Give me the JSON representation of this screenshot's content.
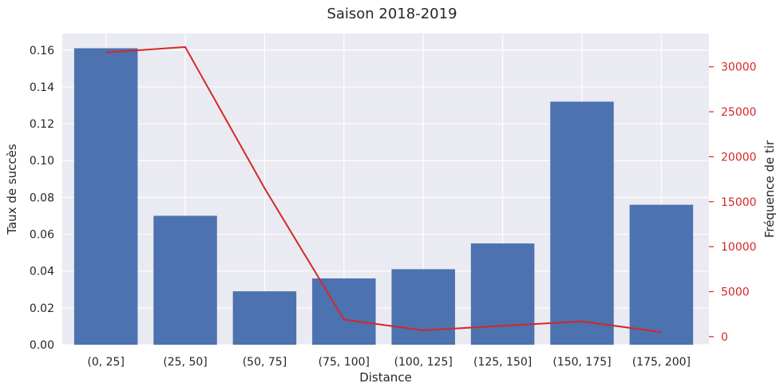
{
  "chart_data": {
    "type": "bar",
    "title": "Saison 2018-2019",
    "xlabel": "Distance",
    "ylabel": "Taux de succès",
    "y2label": "Fréquence de tir",
    "categories": [
      "(0, 25]",
      "(25, 50]",
      "(50, 75]",
      "(75, 100]",
      "(100, 125]",
      "(125, 150]",
      "(150, 175]",
      "(175, 200]"
    ],
    "series": [
      {
        "type": "bar",
        "axis": "left",
        "values": [
          0.161,
          0.07,
          0.029,
          0.036,
          0.041,
          0.055,
          0.132,
          0.076
        ]
      },
      {
        "type": "line",
        "axis": "right",
        "values": [
          31600,
          32200,
          16500,
          1900,
          700,
          1200,
          1700,
          500
        ]
      }
    ],
    "ylim": [
      0,
      0.169
    ],
    "y2lim": [
      -900,
      33700
    ],
    "yticks": [
      "0.00",
      "0.02",
      "0.04",
      "0.06",
      "0.08",
      "0.10",
      "0.12",
      "0.14",
      "0.16"
    ],
    "y2ticks": [
      "0",
      "5000",
      "10000",
      "15000",
      "20000",
      "25000",
      "30000"
    ],
    "grid": true,
    "colors": {
      "bar": "#4c72b0",
      "line": "#d62728",
      "background": "#eaeaf2",
      "grid": "#ffffff",
      "right_axis": "#d62728"
    }
  }
}
